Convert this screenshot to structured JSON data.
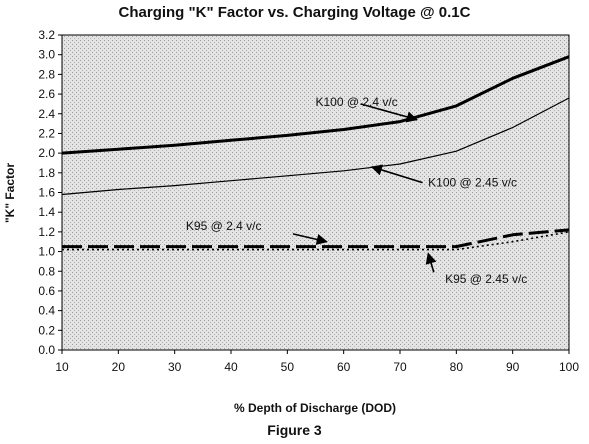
{
  "chart_data": {
    "type": "line",
    "title": "Charging \"K\" Factor vs. Charging Voltage @ 0.1C",
    "xlabel": "% Depth of Discharge (DOD)",
    "ylabel": "\"K\" Factor",
    "xlim": [
      10,
      100
    ],
    "ylim": [
      0.0,
      3.2
    ],
    "x_ticks": [
      "10",
      "20",
      "30",
      "40",
      "50",
      "60",
      "70",
      "80",
      "90",
      "100"
    ],
    "y_ticks": [
      "0.0",
      "0.2",
      "0.4",
      "0.6",
      "0.8",
      "1.0",
      "1.2",
      "1.4",
      "1.6",
      "1.8",
      "2.0",
      "2.2",
      "2.4",
      "2.6",
      "2.8",
      "3.0",
      "3.2"
    ],
    "grid": false,
    "background": "stippled gray",
    "x": [
      10,
      20,
      30,
      40,
      50,
      60,
      70,
      80,
      90,
      100
    ],
    "series": [
      {
        "name": "K100 @ 2.4 v/c",
        "values": [
          2.0,
          2.04,
          2.08,
          2.13,
          2.18,
          2.24,
          2.32,
          2.48,
          2.76,
          2.98
        ],
        "style": "thick-solid",
        "color": "#000000"
      },
      {
        "name": "K100 @ 2.45 v/c",
        "values": [
          1.58,
          1.63,
          1.67,
          1.72,
          1.77,
          1.82,
          1.89,
          2.02,
          2.26,
          2.56
        ],
        "style": "thin-solid",
        "color": "#000000"
      },
      {
        "name": "K95 @ 2.4 v/c",
        "values": [
          1.05,
          1.05,
          1.05,
          1.05,
          1.05,
          1.05,
          1.05,
          1.05,
          1.17,
          1.22
        ],
        "style": "long-dash",
        "color": "#000000"
      },
      {
        "name": "K95 @ 2.45 v/c",
        "values": [
          1.02,
          1.02,
          1.02,
          1.02,
          1.02,
          1.02,
          1.02,
          1.02,
          1.1,
          1.2
        ],
        "style": "dotted",
        "color": "#000000"
      }
    ],
    "annotations": [
      {
        "text": "K100 @ 2.4 v/c",
        "series": 0
      },
      {
        "text": "K100 @ 2.45 v/c",
        "series": 1
      },
      {
        "text": "K95 @ 2.4 v/c",
        "series": 2
      },
      {
        "text": "K95 @ 2.45 v/c",
        "series": 3
      }
    ]
  },
  "figure_caption": "Figure 3"
}
